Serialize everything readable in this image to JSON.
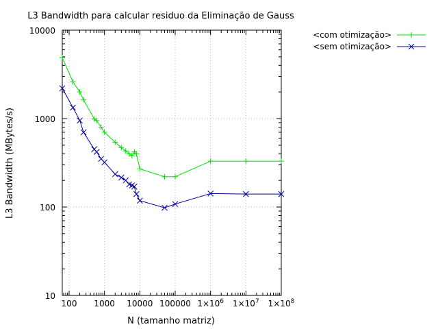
{
  "chart_data": {
    "type": "line",
    "title": "L3 Bandwidth para calcular residuo da Eliminação de Gauss",
    "xlabel": "N (tamanho matriz)",
    "ylabel": "L3 Bandwidth (MBytes/s)",
    "xscale": "log",
    "yscale": "log",
    "xlim": [
      64,
      100000000
    ],
    "ylim": [
      10,
      10000
    ],
    "grid": true,
    "legend_position": "top-right",
    "x_ticks": [
      {
        "value": 100,
        "label": "100"
      },
      {
        "value": 1000,
        "label": "1000"
      },
      {
        "value": 10000,
        "label": "10000"
      },
      {
        "value": 100000,
        "label": "100000"
      },
      {
        "value": 1000000,
        "label": "1×10",
        "exp": "6"
      },
      {
        "value": 10000000,
        "label": "1×10",
        "exp": "7"
      },
      {
        "value": 100000000,
        "label": "1×10",
        "exp": "8"
      }
    ],
    "y_ticks": [
      {
        "value": 10,
        "label": "10"
      },
      {
        "value": 100,
        "label": "100"
      },
      {
        "value": 1000,
        "label": "1000"
      },
      {
        "value": 10000,
        "label": "10000"
      }
    ],
    "series": [
      {
        "name": "<com otimização>",
        "color": "#00dd00",
        "marker": "plus",
        "x": [
          64,
          128,
          200,
          256,
          512,
          600,
          800,
          1000,
          2000,
          3000,
          4000,
          5000,
          6000,
          7000,
          8000,
          10000,
          50000,
          100000,
          1000000,
          10000000,
          100000000
        ],
        "y": [
          4900,
          2600,
          2000,
          1630,
          990,
          950,
          800,
          700,
          540,
          470,
          430,
          400,
          380,
          420,
          400,
          270,
          220,
          220,
          330,
          330,
          330
        ]
      },
      {
        "name": "<sem otimização>",
        "color": "#0000a0",
        "marker": "cross",
        "x": [
          64,
          128,
          200,
          256,
          512,
          600,
          800,
          1000,
          2000,
          3000,
          4000,
          5000,
          6000,
          7000,
          8000,
          10000,
          50000,
          100000,
          1000000,
          10000000,
          100000000
        ],
        "y": [
          2200,
          1330,
          950,
          700,
          450,
          420,
          350,
          320,
          235,
          215,
          200,
          180,
          175,
          170,
          140,
          118,
          98,
          108,
          142,
          140,
          140
        ]
      }
    ]
  }
}
